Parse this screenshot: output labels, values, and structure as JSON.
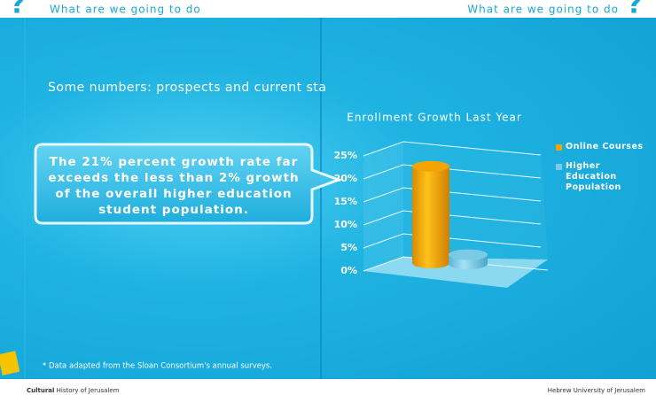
{
  "header": {
    "left": "What are we going to do",
    "right": "What are we going to do"
  },
  "heading": "Some numbers: prospects and current sta",
  "callout": "The 21% percent growth rate far exceeds the less than 2% growth of the overall higher education student population.",
  "footnote": "* Data adapted from the Sloan Consortium's annual surveys.",
  "footer": {
    "left_bold": "Cultural",
    "left": "History of Jerusalem",
    "right": "Hebrew University of Jerusalem"
  },
  "chart_data": {
    "type": "bar3d",
    "title": "Enrollment Growth Last Year",
    "series": [
      {
        "name": "Online Courses",
        "color": "#f2a500",
        "values": [
          21
        ]
      },
      {
        "name": "Higher Education Population",
        "color": "#7ccbe6",
        "values": [
          2
        ]
      }
    ],
    "ylim": [
      0,
      25
    ],
    "yticks": [
      {
        "value": 0,
        "label": "0%"
      },
      {
        "value": 5,
        "label": "5%"
      },
      {
        "value": 10,
        "label": "10%"
      },
      {
        "value": 15,
        "label": "15%"
      },
      {
        "value": 20,
        "label": "20%"
      },
      {
        "value": 25,
        "label": "25%"
      }
    ],
    "grid": true,
    "legend": "right"
  }
}
